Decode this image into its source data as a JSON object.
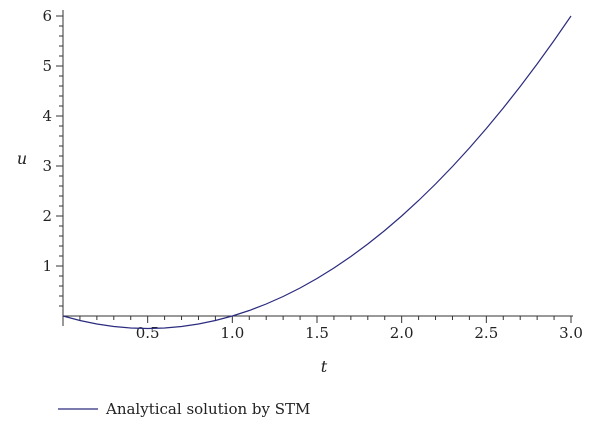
{
  "chart_data": {
    "type": "line",
    "title": "",
    "xlabel": "t",
    "ylabel": "u",
    "xlim": [
      0,
      3.0
    ],
    "ylim": [
      -0.25,
      6
    ],
    "x_ticks": [
      0.5,
      1.0,
      1.5,
      2.0,
      2.5,
      3.0
    ],
    "x_tick_labels": [
      "0.5",
      "1.0",
      "1.5",
      "2.0",
      "2.5",
      "3.0"
    ],
    "y_ticks": [
      1,
      2,
      3,
      4,
      5,
      6
    ],
    "y_tick_labels": [
      "1",
      "2",
      "3",
      "4",
      "5",
      "6"
    ],
    "grid": false,
    "legend_position": "bottom-left",
    "series": [
      {
        "name": "Analytical solution by STM",
        "color": "#2b2b7f",
        "x": [
          0,
          0.1,
          0.2,
          0.3,
          0.4,
          0.5,
          0.6,
          0.7,
          0.8,
          0.9,
          1.0,
          1.1,
          1.2,
          1.3,
          1.4,
          1.5,
          1.6,
          1.7,
          1.8,
          1.9,
          2.0,
          2.1,
          2.2,
          2.3,
          2.4,
          2.5,
          2.6,
          2.7,
          2.8,
          2.9,
          3.0
        ],
        "y": [
          0,
          -0.09,
          -0.16,
          -0.21,
          -0.24,
          -0.25,
          -0.24,
          -0.21,
          -0.16,
          -0.09,
          0,
          0.11,
          0.24,
          0.39,
          0.56,
          0.75,
          0.96,
          1.19,
          1.44,
          1.71,
          2.0,
          2.31,
          2.64,
          2.99,
          3.36,
          3.75,
          4.16,
          4.59,
          5.04,
          5.51,
          6.0
        ]
      }
    ]
  }
}
